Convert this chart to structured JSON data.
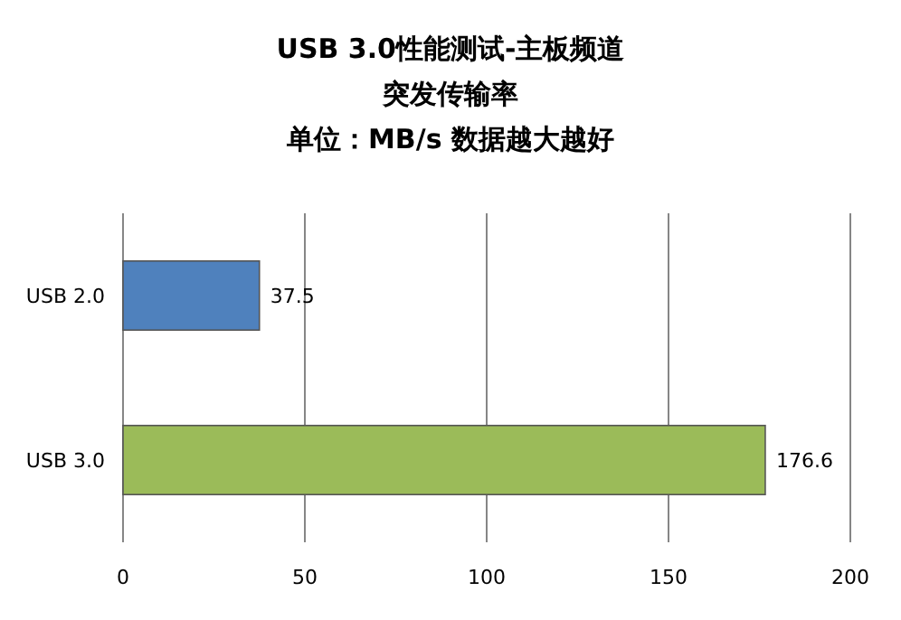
{
  "chart_data": {
    "type": "bar",
    "orientation": "horizontal",
    "title": "USB 3.0性能测试-主板频道",
    "subtitle": "突发传输率",
    "annotations": [
      "单位：MB/s 数据越大越好"
    ],
    "categories": [
      "USB 2.0",
      "USB 3.0"
    ],
    "values": [
      37.5,
      176.6
    ],
    "colors": [
      "#4f81bd",
      "#9bbb59"
    ],
    "xlim": [
      0,
      200
    ],
    "xticks": [
      0,
      50,
      100,
      150,
      200
    ],
    "grid": "x",
    "data_labels": true
  }
}
